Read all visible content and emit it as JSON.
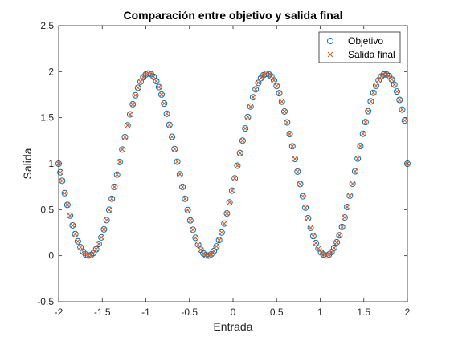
{
  "chart_data": {
    "type": "scatter",
    "title": "Comparación entre objetivo y salida final",
    "xlabel": "Entrada",
    "ylabel": "Salida",
    "xlim": [
      -2,
      2
    ],
    "ylim": [
      -0.5,
      2.5
    ],
    "xticks": [
      -2,
      -1.5,
      -1,
      -0.5,
      0,
      0.5,
      1,
      1.5,
      2
    ],
    "xtick_labels": [
      "-2",
      "-1.5",
      "-1",
      "-0.5",
      "0",
      "0.5",
      "1",
      "1.5",
      "2"
    ],
    "yticks": [
      -0.5,
      0,
      0.5,
      1,
      1.5,
      2,
      2.5
    ],
    "ytick_labels": [
      "-0.5",
      "0",
      "0.5",
      "1",
      "1.5",
      "2",
      "2.5"
    ],
    "grid": false,
    "legend_position": "top-right",
    "series": [
      {
        "name": "Objetivo",
        "marker": "circle",
        "color": "#0072BD",
        "x": [
          -2.0,
          -1.98,
          -1.96,
          -1.93,
          -1.9,
          -1.87,
          -1.84,
          -1.81,
          -1.78,
          -1.75,
          -1.72,
          -1.69,
          -1.66,
          -1.63,
          -1.6,
          -1.57,
          -1.54,
          -1.51,
          -1.48,
          -1.45,
          -1.42,
          -1.39,
          -1.36,
          -1.33,
          -1.3,
          -1.27,
          -1.24,
          -1.21,
          -1.18,
          -1.15,
          -1.12,
          -1.09,
          -1.06,
          -1.03,
          -1.0,
          -0.97,
          -0.94,
          -0.91,
          -0.88,
          -0.85,
          -0.82,
          -0.79,
          -0.76,
          -0.73,
          -0.7,
          -0.67,
          -0.64,
          -0.61,
          -0.58,
          -0.55,
          -0.52,
          -0.49,
          -0.46,
          -0.43,
          -0.4,
          -0.37,
          -0.34,
          -0.31,
          -0.28,
          -0.25,
          -0.22,
          -0.19,
          -0.16,
          -0.13,
          -0.1,
          -0.07,
          -0.04,
          -0.01,
          0.02,
          0.05,
          0.08,
          0.11,
          0.14,
          0.17,
          0.2,
          0.23,
          0.26,
          0.29,
          0.32,
          0.35,
          0.38,
          0.41,
          0.44,
          0.47,
          0.5,
          0.53,
          0.56,
          0.59,
          0.62,
          0.65,
          0.68,
          0.71,
          0.74,
          0.77,
          0.8,
          0.83,
          0.86,
          0.89,
          0.92,
          0.95,
          0.98,
          1.01,
          1.04,
          1.07,
          1.1,
          1.13,
          1.16,
          1.19,
          1.22,
          1.25,
          1.28,
          1.31,
          1.34,
          1.37,
          1.4,
          1.43,
          1.46,
          1.49,
          1.52,
          1.55,
          1.58,
          1.61,
          1.64,
          1.67,
          1.7,
          1.73,
          1.76,
          1.79,
          1.82,
          1.85,
          1.88,
          1.91,
          1.94,
          1.97,
          2.0
        ],
        "y": [
          1.0,
          0.906,
          0.814,
          0.679,
          0.552,
          0.435,
          0.329,
          0.235,
          0.156,
          0.092,
          0.044,
          0.013,
          0.001,
          0.006,
          0.029,
          0.07,
          0.127,
          0.199,
          0.286,
          0.386,
          0.498,
          0.619,
          0.748,
          0.881,
          1.018,
          1.154,
          1.288,
          1.416,
          1.536,
          1.646,
          1.743,
          1.825,
          1.891,
          1.939,
          1.969,
          1.98,
          1.972,
          1.944,
          1.897,
          1.832,
          1.751,
          1.654,
          1.543,
          1.422,
          1.292,
          1.159,
          1.021,
          0.884,
          0.748,
          0.618,
          0.496,
          0.383,
          0.282,
          0.194,
          0.121,
          0.065,
          0.025,
          0.004,
          0.001,
          0.016,
          0.05,
          0.101,
          0.169,
          0.252,
          0.349,
          0.459,
          0.579,
          0.707,
          0.841,
          0.978,
          1.115,
          1.251,
          1.383,
          1.507,
          1.621,
          1.722,
          1.808,
          1.878,
          1.929,
          1.962,
          1.976,
          1.971,
          1.947,
          1.904,
          1.844,
          1.766,
          1.674,
          1.567,
          1.449,
          1.322,
          1.189,
          1.052,
          0.914,
          0.778,
          0.646,
          0.522,
          0.407,
          0.303,
          0.213,
          0.138,
          0.079,
          0.036,
          0.011,
          0.003,
          0.013,
          0.04,
          0.085,
          0.146,
          0.222,
          0.312,
          0.415,
          0.529,
          0.652,
          0.782,
          0.917,
          1.055,
          1.191,
          1.325,
          1.452,
          1.57,
          1.677,
          1.77,
          1.847,
          1.906,
          1.947,
          1.969,
          1.97,
          1.952,
          1.915,
          1.858,
          1.784,
          1.693,
          1.588,
          1.469,
          1.0
        ]
      },
      {
        "name": "Salida final",
        "marker": "x",
        "color": "#D95319",
        "x": [
          -2.0,
          -1.98,
          -1.96,
          -1.93,
          -1.9,
          -1.87,
          -1.84,
          -1.81,
          -1.78,
          -1.75,
          -1.72,
          -1.69,
          -1.66,
          -1.63,
          -1.6,
          -1.57,
          -1.54,
          -1.51,
          -1.48,
          -1.45,
          -1.42,
          -1.39,
          -1.36,
          -1.33,
          -1.3,
          -1.27,
          -1.24,
          -1.21,
          -1.18,
          -1.15,
          -1.12,
          -1.09,
          -1.06,
          -1.03,
          -1.0,
          -0.97,
          -0.94,
          -0.91,
          -0.88,
          -0.85,
          -0.82,
          -0.79,
          -0.76,
          -0.73,
          -0.7,
          -0.67,
          -0.64,
          -0.61,
          -0.58,
          -0.55,
          -0.52,
          -0.49,
          -0.46,
          -0.43,
          -0.4,
          -0.37,
          -0.34,
          -0.31,
          -0.28,
          -0.25,
          -0.22,
          -0.19,
          -0.16,
          -0.13,
          -0.1,
          -0.07,
          -0.04,
          -0.01,
          0.02,
          0.05,
          0.08,
          0.11,
          0.14,
          0.17,
          0.2,
          0.23,
          0.26,
          0.29,
          0.32,
          0.35,
          0.38,
          0.41,
          0.44,
          0.47,
          0.5,
          0.53,
          0.56,
          0.59,
          0.62,
          0.65,
          0.68,
          0.71,
          0.74,
          0.77,
          0.8,
          0.83,
          0.86,
          0.89,
          0.92,
          0.95,
          0.98,
          1.01,
          1.04,
          1.07,
          1.1,
          1.13,
          1.16,
          1.19,
          1.22,
          1.25,
          1.28,
          1.31,
          1.34,
          1.37,
          1.4,
          1.43,
          1.46,
          1.49,
          1.52,
          1.55,
          1.58,
          1.61,
          1.64,
          1.67,
          1.7,
          1.73,
          1.76,
          1.79,
          1.82,
          1.85,
          1.88,
          1.91,
          1.94,
          1.97,
          2.0
        ],
        "y": [
          1.0,
          0.906,
          0.814,
          0.679,
          0.552,
          0.435,
          0.329,
          0.235,
          0.156,
          0.092,
          0.044,
          0.013,
          0.001,
          0.006,
          0.029,
          0.07,
          0.127,
          0.199,
          0.286,
          0.386,
          0.498,
          0.619,
          0.748,
          0.881,
          1.018,
          1.154,
          1.288,
          1.416,
          1.536,
          1.646,
          1.743,
          1.825,
          1.891,
          1.939,
          1.969,
          1.98,
          1.972,
          1.944,
          1.897,
          1.832,
          1.751,
          1.654,
          1.543,
          1.422,
          1.292,
          1.159,
          1.021,
          0.884,
          0.748,
          0.618,
          0.496,
          0.383,
          0.282,
          0.194,
          0.121,
          0.065,
          0.025,
          0.004,
          0.001,
          0.016,
          0.05,
          0.101,
          0.169,
          0.252,
          0.349,
          0.459,
          0.579,
          0.707,
          0.841,
          0.978,
          1.115,
          1.251,
          1.383,
          1.507,
          1.621,
          1.722,
          1.808,
          1.878,
          1.929,
          1.962,
          1.976,
          1.971,
          1.947,
          1.904,
          1.844,
          1.766,
          1.674,
          1.567,
          1.449,
          1.322,
          1.189,
          1.052,
          0.914,
          0.778,
          0.646,
          0.522,
          0.407,
          0.303,
          0.213,
          0.138,
          0.079,
          0.036,
          0.011,
          0.003,
          0.013,
          0.04,
          0.085,
          0.146,
          0.222,
          0.312,
          0.415,
          0.529,
          0.652,
          0.782,
          0.917,
          1.055,
          1.191,
          1.325,
          1.452,
          1.57,
          1.677,
          1.77,
          1.847,
          1.906,
          1.947,
          1.969,
          1.97,
          1.952,
          1.915,
          1.858,
          1.784,
          1.693,
          1.588,
          1.469,
          1.0
        ]
      }
    ]
  }
}
